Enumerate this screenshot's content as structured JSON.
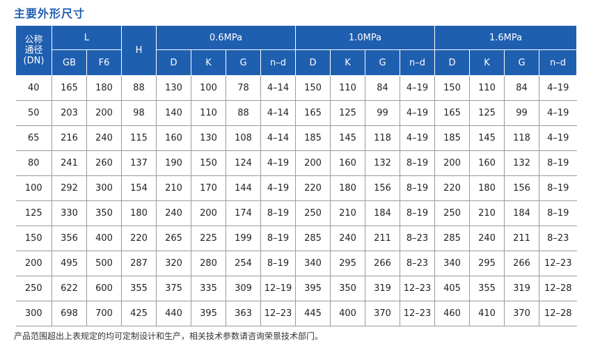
{
  "title": "主要外形尺寸",
  "headers": {
    "dn": [
      "公称",
      "通径",
      "(DN)"
    ],
    "l": "L",
    "h": "H",
    "pressures": [
      "0.6MPa",
      "1.0MPa",
      "1.6MPa"
    ],
    "l_sub": [
      "GB",
      "F6"
    ],
    "p_sub": [
      "D",
      "K",
      "G",
      "n–d"
    ]
  },
  "rows": [
    [
      "40",
      "165",
      "180",
      "88",
      "130",
      "100",
      "78",
      "4–14",
      "150",
      "110",
      "84",
      "4–19",
      "150",
      "110",
      "84",
      "4–19"
    ],
    [
      "50",
      "203",
      "200",
      "98",
      "140",
      "110",
      "88",
      "4–14",
      "165",
      "125",
      "99",
      "4–19",
      "165",
      "125",
      "99",
      "4–19"
    ],
    [
      "65",
      "216",
      "240",
      "115",
      "160",
      "130",
      "108",
      "4–14",
      "185",
      "145",
      "118",
      "4–19",
      "185",
      "145",
      "118",
      "4–19"
    ],
    [
      "80",
      "241",
      "260",
      "137",
      "190",
      "150",
      "124",
      "4–19",
      "200",
      "160",
      "132",
      "8–19",
      "200",
      "160",
      "132",
      "8–19"
    ],
    [
      "100",
      "292",
      "300",
      "154",
      "210",
      "170",
      "144",
      "4–19",
      "220",
      "180",
      "156",
      "8–19",
      "220",
      "180",
      "156",
      "8–19"
    ],
    [
      "125",
      "330",
      "350",
      "180",
      "240",
      "200",
      "174",
      "8–19",
      "250",
      "210",
      "184",
      "8–19",
      "250",
      "210",
      "184",
      "8–19"
    ],
    [
      "150",
      "356",
      "400",
      "220",
      "265",
      "225",
      "199",
      "8–19",
      "285",
      "240",
      "211",
      "8–23",
      "285",
      "240",
      "211",
      "8–23"
    ],
    [
      "200",
      "495",
      "500",
      "287",
      "320",
      "280",
      "254",
      "8–19",
      "340",
      "295",
      "266",
      "8–23",
      "340",
      "295",
      "266",
      "12–23"
    ],
    [
      "250",
      "622",
      "600",
      "355",
      "375",
      "335",
      "309",
      "12–19",
      "395",
      "350",
      "319",
      "12–23",
      "405",
      "355",
      "319",
      "12–28"
    ],
    [
      "300",
      "698",
      "700",
      "425",
      "440",
      "395",
      "363",
      "12–23",
      "445",
      "400",
      "370",
      "12–23",
      "460",
      "410",
      "370",
      "12–28"
    ]
  ],
  "note": "产品范围超出上表规定的均可定制设计和生产，相关技术参数请咨询荣景技术部门。"
}
